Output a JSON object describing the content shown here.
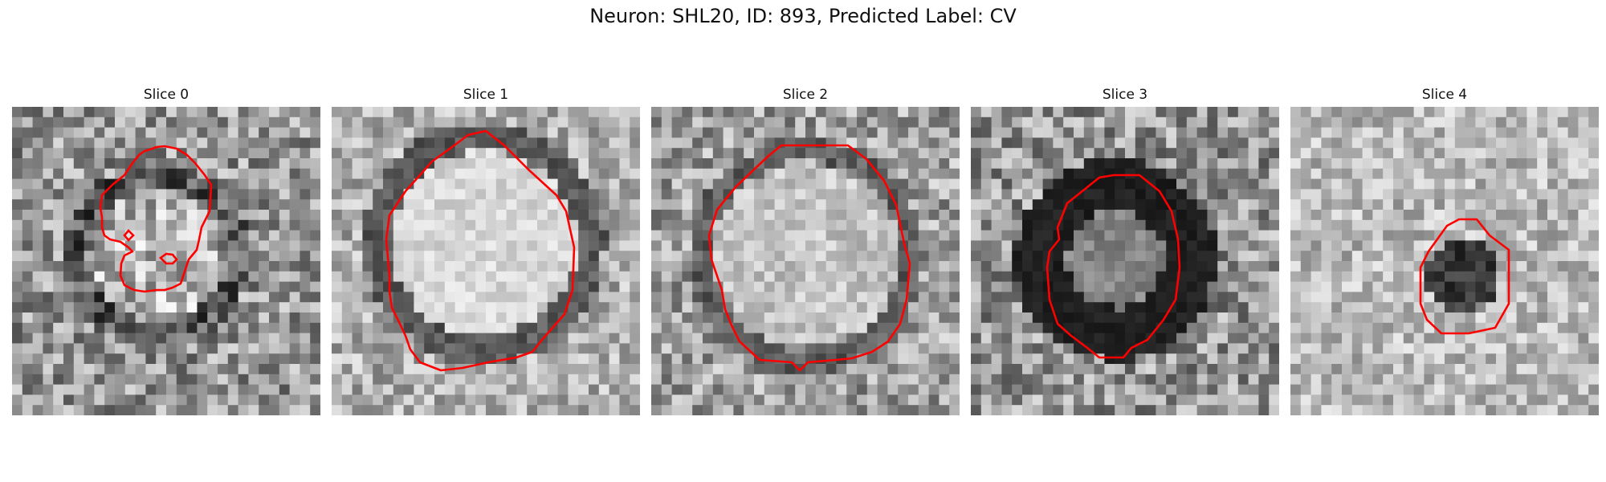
{
  "figure": {
    "title": "Neuron: SHL20, ID: 893, Predicted Label: CV",
    "contour_color": "#ff0000",
    "colormap": "gray"
  },
  "slices": [
    {
      "title": "Slice 0",
      "icon": "grayscale-em-patch"
    },
    {
      "title": "Slice 1",
      "icon": "grayscale-em-patch"
    },
    {
      "title": "Slice 2",
      "icon": "grayscale-em-patch"
    },
    {
      "title": "Slice 3",
      "icon": "grayscale-em-patch"
    },
    {
      "title": "Slice 4",
      "icon": "grayscale-em-patch"
    }
  ]
}
